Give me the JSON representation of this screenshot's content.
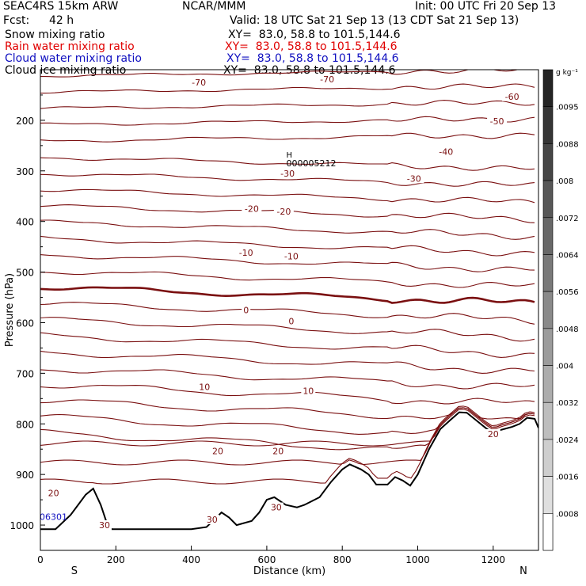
{
  "header": {
    "model": "SEAC4RS 15km ARW",
    "org": "NCAR/MMM",
    "init": "Init: 00 UTC Fri 20 Sep 13",
    "fcst_label": "Fcst:",
    "fcst_value": "42 h",
    "valid": "Valid: 18 UTC Sat 21 Sep 13 (13 CDT Sat 21 Sep 13)",
    "fields": [
      {
        "name": "Snow mixing ratio",
        "xy": "XY=  83.0, 58.8 to 101.5,144.6",
        "color": "#000000"
      },
      {
        "name": "Rain water mixing ratio",
        "xy": "XY=  83.0, 58.8 to 101.5,144.6",
        "color": "#e00000"
      },
      {
        "name": "Cloud water mixing ratio",
        "xy": "XY=  83.0, 58.8 to 101.5,144.6",
        "color": "#1010c0"
      },
      {
        "name": "Cloud ice mixing ratio",
        "xy": "XY=  83.0, 58.8 to 101.5,144.6",
        "color": "#000000"
      }
    ]
  },
  "chart_data": {
    "type": "contour",
    "ylabel": "Pressure (hPa)",
    "xlabel": "Distance (km)",
    "x_ticks": [
      0,
      200,
      400,
      600,
      800,
      1000,
      1200
    ],
    "y_ticks": [
      200,
      300,
      400,
      500,
      600,
      700,
      800,
      900,
      1000
    ],
    "xlim": [
      0,
      1320
    ],
    "ylim_hpa": [
      1050,
      100
    ],
    "endpoint_left": "S",
    "endpoint_right": "N",
    "marker": {
      "symbol": "H",
      "label": "000005212",
      "x_km": 660,
      "p_hpa": 283
    },
    "corner_label": "06301",
    "isotherm_labels": [
      {
        "text": "-70",
        "x_km": 420,
        "p_hpa": 128
      },
      {
        "text": "-70",
        "x_km": 760,
        "p_hpa": 122
      },
      {
        "text": "-60",
        "x_km": 1250,
        "p_hpa": 156
      },
      {
        "text": "-50",
        "x_km": 1210,
        "p_hpa": 205
      },
      {
        "text": "-40",
        "x_km": 1075,
        "p_hpa": 265
      },
      {
        "text": "-30",
        "x_km": 655,
        "p_hpa": 308
      },
      {
        "text": "-30",
        "x_km": 990,
        "p_hpa": 318
      },
      {
        "text": "-20",
        "x_km": 560,
        "p_hpa": 378
      },
      {
        "text": "-20",
        "x_km": 645,
        "p_hpa": 383
      },
      {
        "text": "-10",
        "x_km": 545,
        "p_hpa": 465
      },
      {
        "text": "-10",
        "x_km": 665,
        "p_hpa": 472
      },
      {
        "text": "0",
        "x_km": 545,
        "p_hpa": 578
      },
      {
        "text": "0",
        "x_km": 665,
        "p_hpa": 600
      },
      {
        "text": "10",
        "x_km": 435,
        "p_hpa": 730
      },
      {
        "text": "10",
        "x_km": 710,
        "p_hpa": 738
      },
      {
        "text": "20",
        "x_km": 470,
        "p_hpa": 857
      },
      {
        "text": "20",
        "x_km": 630,
        "p_hpa": 857
      },
      {
        "text": "20",
        "x_km": 1200,
        "p_hpa": 823
      },
      {
        "text": "20",
        "x_km": 35,
        "p_hpa": 940
      },
      {
        "text": "30",
        "x_km": 170,
        "p_hpa": 1003
      },
      {
        "text": "30",
        "x_km": 455,
        "p_hpa": 992
      },
      {
        "text": "30",
        "x_km": 625,
        "p_hpa": 968
      }
    ],
    "terrain_hpa": {
      "x_km": [
        0,
        40,
        80,
        100,
        120,
        140,
        160,
        180,
        190,
        220,
        300,
        360,
        400,
        440,
        460,
        480,
        500,
        520,
        560,
        580,
        600,
        620,
        650,
        680,
        700,
        740,
        770,
        800,
        820,
        850,
        870,
        890,
        920,
        940,
        960,
        980,
        1000,
        1030,
        1060,
        1090,
        1110,
        1130,
        1150,
        1180,
        1200,
        1220,
        1250,
        1270,
        1290,
        1310,
        1320
      ],
      "p_hpa": [
        1008,
        1008,
        980,
        960,
        940,
        928,
        960,
        1005,
        1008,
        1008,
        1008,
        1008,
        1008,
        1004,
        990,
        975,
        985,
        1000,
        992,
        975,
        950,
        945,
        960,
        965,
        960,
        945,
        915,
        890,
        880,
        890,
        900,
        920,
        920,
        905,
        912,
        922,
        900,
        850,
        810,
        790,
        777,
        778,
        790,
        808,
        818,
        812,
        806,
        800,
        788,
        790,
        808
      ]
    },
    "colorbar": {
      "unit": "g kg⁻¹",
      "ticks": [
        ".0008",
        ".0016",
        ".0024",
        ".0032",
        ".004",
        ".0048",
        ".0056",
        ".0064",
        ".0072",
        ".008",
        ".0088",
        ".0095"
      ]
    }
  }
}
